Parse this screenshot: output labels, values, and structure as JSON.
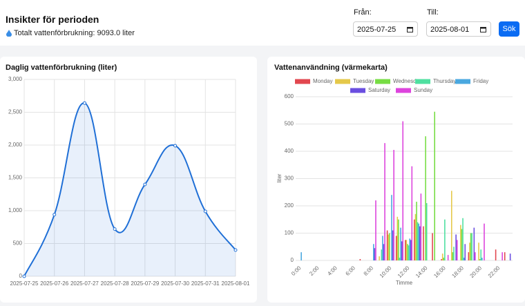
{
  "header": {
    "title": "Insikter för perioden",
    "total": "Totalt vattenförbrukning: 9093.0 liter"
  },
  "filters": {
    "from_label": "Från:",
    "from_value": "2025-07-25",
    "to_label": "Till:",
    "to_value": "2025-08-01",
    "button": "Sök"
  },
  "chart_data": [
    {
      "type": "line",
      "title": "Daglig vattenförbrukning (liter)",
      "categories": [
        "2025-07-25",
        "2025-07-26",
        "2025-07-27",
        "2025-07-28",
        "2025-07-29",
        "2025-07-30",
        "2025-07-31",
        "2025-08-01"
      ],
      "values": [
        0,
        940,
        2640,
        720,
        1400,
        1990,
        990,
        400
      ],
      "color": "#1f6fd6",
      "ylim": [
        0,
        3000
      ],
      "yticks": [
        0,
        500,
        {
          "value": 1000,
          "label": "1,000"
        },
        {
          "value": 1500,
          "label": "1,500"
        },
        {
          "value": 2000,
          "label": "2,000"
        },
        {
          "value": 2500,
          "label": "2,500"
        },
        {
          "value": 3000,
          "label": "3,000"
        }
      ],
      "grid": true
    },
    {
      "type": "bar",
      "title": "Vattenanvändning (värmekarta)",
      "x_label": "Timme",
      "y_label": "liter",
      "categories": [
        "0:00",
        null,
        "2:00",
        null,
        "4:00",
        null,
        "6:00",
        null,
        "8:00",
        null,
        "10:00",
        null,
        "12:00",
        null,
        "14:00",
        null,
        "16:00",
        null,
        "18:00",
        null,
        "20:00",
        null,
        "22:00",
        null
      ],
      "series": [
        {
          "name": "Monday",
          "color": "#e2474f",
          "values": [
            0,
            0,
            0,
            0,
            0,
            0,
            0,
            5,
            0,
            0,
            110,
            90,
            75,
            150,
            125,
            100,
            5,
            0,
            0,
            30,
            0,
            0,
            40,
            30
          ]
        },
        {
          "name": "Tuesday",
          "color": "#e5c84a",
          "values": [
            0,
            0,
            0,
            0,
            0,
            0,
            0,
            0,
            0,
            15,
            95,
            160,
            75,
            170,
            0,
            0,
            25,
            255,
            130,
            65,
            65,
            0,
            0,
            0
          ]
        },
        {
          "name": "Wednesday",
          "color": "#77dd44",
          "values": [
            0,
            0,
            0,
            0,
            0,
            0,
            0,
            0,
            0,
            0,
            100,
            150,
            60,
            215,
            455,
            545,
            10,
            30,
            115,
            100,
            5,
            0,
            0,
            0
          ]
        },
        {
          "name": "Thursday",
          "color": "#4fe0a0",
          "values": [
            0,
            0,
            0,
            0,
            0,
            0,
            0,
            0,
            0,
            40,
            0,
            10,
            55,
            140,
            210,
            0,
            150,
            50,
            155,
            100,
            40,
            0,
            0,
            0
          ]
        },
        {
          "name": "Friday",
          "color": "#4aa8e0",
          "values": [
            30,
            0,
            0,
            0,
            0,
            0,
            0,
            0,
            60,
            90,
            240,
            120,
            80,
            135,
            0,
            0,
            0,
            0,
            10,
            0,
            10,
            0,
            0,
            0
          ]
        },
        {
          "name": "Saturday",
          "color": "#6a4ee0",
          "values": [
            0,
            0,
            0,
            0,
            0,
            0,
            0,
            0,
            45,
            60,
            110,
            70,
            75,
            125,
            0,
            0,
            0,
            95,
            60,
            120,
            0,
            0,
            0,
            25
          ]
        },
        {
          "name": "Sunday",
          "color": "#dd44dd",
          "values": [
            0,
            0,
            0,
            0,
            0,
            0,
            0,
            0,
            220,
            430,
            405,
            510,
            345,
            245,
            0,
            0,
            20,
            75,
            0,
            30,
            135,
            0,
            30,
            0
          ]
        }
      ],
      "ylim": [
        0,
        600
      ],
      "yticks": [
        0,
        100,
        200,
        300,
        400,
        500,
        600
      ],
      "grid": true
    }
  ]
}
